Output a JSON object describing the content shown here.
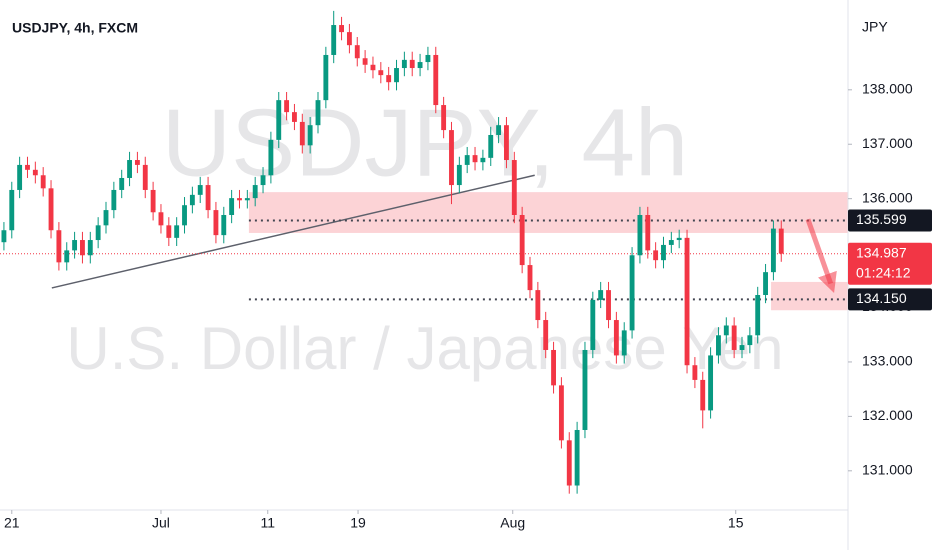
{
  "chart_data": {
    "type": "candlestick",
    "title": "USDJPY, 4h, FXCM",
    "currency": "JPY",
    "watermark": {
      "symbol": "USDJPY, 4h",
      "description": "U.S. Dollar / Japanese Yen"
    },
    "up_color": "#089981",
    "down_color": "#f23645",
    "xlim": [
      -0.5,
      107.5
    ],
    "xticks": [
      {
        "value": 1,
        "label": "21"
      },
      {
        "value": 20,
        "label": "Jul"
      },
      {
        "value": 33.6,
        "label": "11"
      },
      {
        "value": 45.1,
        "label": "19"
      },
      {
        "value": 64.8,
        "label": "Aug"
      },
      {
        "value": 93.2,
        "label": "15"
      }
    ],
    "ylim": [
      130.28,
      139.65
    ],
    "yticks": [
      {
        "value": 131,
        "label": "131.000"
      },
      {
        "value": 132,
        "label": "132.000"
      },
      {
        "value": 133,
        "label": "133.000"
      },
      {
        "value": 134,
        "label": "134.000"
      },
      {
        "value": 135,
        "label": "135.000"
      },
      {
        "value": 136,
        "label": "136.000"
      },
      {
        "value": 137,
        "label": "137.000"
      },
      {
        "value": 138,
        "label": "138.000"
      }
    ],
    "grid": false,
    "open": [
      135.2,
      135.42,
      136.16,
      136.62,
      136.53,
      136.43,
      136.19,
      135.42,
      134.83,
      135.05,
      135.24,
      134.96,
      135.24,
      135.51,
      135.79,
      136.16,
      136.38,
      136.71,
      136.62,
      136.16,
      135.75,
      135.51,
      135.28,
      135.51,
      135.88,
      136.07,
      136.25,
      135.79,
      135.33,
      135.7,
      136.01,
      135.97,
      136.01,
      136.25,
      136.43,
      137.08,
      137.81,
      137.59,
      137.41,
      136.98,
      137.35,
      137.81,
      138.64,
      139.19,
      139.06,
      138.82,
      138.58,
      138.46,
      138.36,
      138.27,
      138.14,
      138.4,
      138.55,
      138.4,
      138.51,
      138.64,
      137.72,
      137.26,
      136.25,
      136.62,
      136.8,
      136.67,
      136.75,
      137.17,
      137.35,
      136.71,
      135.7,
      134.78,
      134.32,
      133.77,
      133.22,
      132.57,
      131.56,
      130.73,
      131.75,
      133.22,
      134.14,
      134.32,
      133.77,
      133.12,
      133.58,
      134.96,
      135.7,
      135.05,
      134.87,
      135.15,
      135.24,
      135.28,
      132.94,
      132.67,
      132.11,
      133.12,
      133.49,
      133.67,
      133.22,
      133.31,
      133.49,
      134.23,
      134.65,
      135.45
    ],
    "high": [
      135.57,
      136.31,
      136.77,
      136.77,
      136.68,
      136.58,
      136.34,
      135.57,
      135.2,
      135.39,
      135.39,
      135.39,
      135.66,
      135.94,
      136.31,
      136.53,
      136.86,
      136.86,
      136.77,
      136.31,
      135.9,
      135.66,
      135.66,
      136.03,
      136.22,
      136.4,
      136.4,
      135.94,
      135.85,
      136.16,
      136.16,
      136.16,
      136.4,
      136.58,
      137.23,
      137.96,
      137.96,
      137.74,
      137.56,
      137.5,
      137.96,
      138.79,
      139.45,
      139.34,
      139.21,
      138.97,
      138.73,
      138.61,
      138.51,
      138.42,
      138.55,
      138.7,
      138.7,
      138.66,
      138.79,
      138.79,
      137.87,
      137.41,
      136.77,
      136.95,
      136.95,
      136.9,
      137.32,
      137.5,
      137.5,
      136.86,
      135.85,
      134.93,
      134.47,
      133.92,
      133.37,
      132.72,
      131.71,
      131.9,
      133.37,
      134.29,
      134.47,
      134.47,
      133.92,
      133.73,
      135.11,
      135.85,
      135.85,
      135.2,
      135.3,
      135.39,
      135.43,
      135.43,
      133.09,
      132.82,
      133.27,
      133.64,
      133.82,
      133.82,
      133.46,
      133.64,
      134.38,
      134.8,
      135.6,
      135.6
    ],
    "low": [
      135.05,
      135.27,
      136.01,
      136.38,
      136.28,
      136.04,
      135.27,
      134.68,
      134.68,
      134.9,
      134.81,
      134.81,
      135.09,
      135.36,
      135.64,
      136.01,
      136.23,
      136.47,
      136.01,
      135.6,
      135.36,
      135.13,
      135.13,
      135.36,
      135.73,
      135.92,
      135.64,
      135.18,
      135.18,
      135.55,
      135.82,
      135.82,
      135.86,
      136.1,
      136.28,
      136.93,
      137.44,
      137.26,
      136.83,
      136.83,
      137.2,
      137.66,
      138.49,
      138.91,
      138.67,
      138.43,
      138.31,
      138.21,
      138.12,
      137.99,
      137.99,
      138.25,
      138.25,
      138.25,
      138.36,
      137.57,
      137.11,
      135.9,
      136.1,
      136.47,
      136.52,
      136.52,
      136.6,
      137.02,
      136.56,
      135.55,
      134.63,
      134.17,
      133.62,
      133.07,
      132.42,
      131.41,
      130.58,
      130.58,
      131.6,
      133.07,
      133.99,
      133.62,
      132.97,
      132.97,
      133.43,
      134.81,
      134.9,
      134.72,
      134.72,
      135.0,
      135.09,
      132.79,
      132.52,
      131.78,
      131.96,
      132.97,
      133.34,
      133.07,
      133.07,
      133.16,
      133.34,
      134.08,
      134.5,
      134.84
    ],
    "close": [
      135.42,
      136.16,
      136.62,
      136.53,
      136.43,
      136.19,
      135.42,
      134.83,
      135.05,
      135.24,
      134.96,
      135.24,
      135.51,
      135.79,
      136.16,
      136.38,
      136.71,
      136.62,
      136.16,
      135.75,
      135.51,
      135.28,
      135.51,
      135.88,
      136.07,
      136.25,
      135.79,
      135.33,
      135.7,
      136.01,
      135.97,
      136.01,
      136.25,
      136.43,
      137.08,
      137.81,
      137.59,
      137.41,
      136.98,
      137.35,
      137.81,
      138.64,
      139.19,
      139.06,
      138.82,
      138.58,
      138.46,
      138.36,
      138.27,
      138.14,
      138.4,
      138.55,
      138.4,
      138.51,
      138.64,
      137.72,
      137.26,
      136.25,
      136.62,
      136.8,
      136.67,
      136.75,
      137.17,
      137.35,
      136.71,
      135.7,
      134.78,
      134.32,
      133.77,
      133.22,
      132.57,
      131.56,
      130.73,
      131.75,
      133.22,
      134.14,
      134.32,
      133.77,
      133.12,
      133.58,
      134.96,
      135.7,
      135.05,
      134.87,
      135.15,
      135.24,
      135.28,
      132.94,
      132.67,
      132.11,
      133.12,
      133.49,
      133.67,
      133.22,
      133.31,
      133.49,
      134.23,
      134.65,
      135.45,
      134.99
    ],
    "last_price": 134.987,
    "countdown": "01:24:12",
    "levels": [
      135.599,
      {
        "value": 134.15,
        "label": "134.150"
      }
    ],
    "zones": [
      {
        "x": [
          31.2,
          107.5
        ],
        "y": [
          135.37,
          136.12
        ]
      },
      {
        "x": [
          97.7,
          107.5
        ],
        "y": [
          133.95,
          134.47
        ]
      }
    ],
    "trendline": {
      "x": [
        6.1,
        67.6
      ],
      "y": [
        134.36,
        136.43
      ]
    },
    "arrow": {
      "x": [
        102.4,
        105.3
      ],
      "y": [
        135.62,
        134.44
      ]
    }
  }
}
